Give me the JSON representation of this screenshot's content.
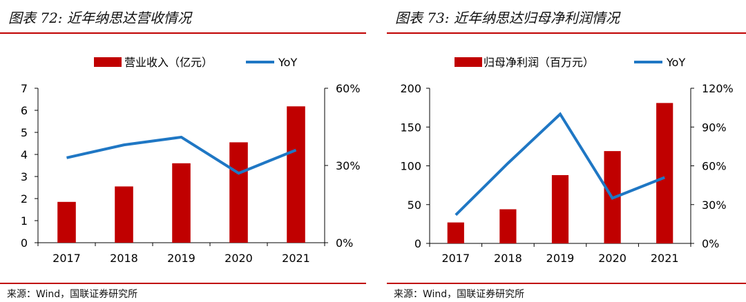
{
  "colors": {
    "bar": "#c00000",
    "line": "#1f77c4",
    "rule": "#c00000"
  },
  "chart_data": [
    {
      "type": "bar",
      "title": "图表 72:  近年纳思达营收情况",
      "source": "来源：Wind，国联证券研究所",
      "categories": [
        "2017",
        "2018",
        "2019",
        "2020",
        "2021"
      ],
      "series": [
        {
          "name": "营业收入（亿元）",
          "type": "bar",
          "axis": "left",
          "values": [
            1.85,
            2.55,
            3.6,
            4.55,
            6.18
          ]
        },
        {
          "name": "YoY",
          "type": "line",
          "axis": "right",
          "values": [
            33,
            38,
            41,
            27,
            36
          ]
        }
      ],
      "ylim": [
        0,
        7
      ],
      "yticks": [
        "0",
        "1",
        "2",
        "3",
        "4",
        "5",
        "6",
        "7"
      ],
      "y2lim": [
        0,
        60
      ],
      "y2ticks": [
        "0%",
        "30%",
        "60%"
      ],
      "legend": "top"
    },
    {
      "type": "bar",
      "title": "图表 73:  近年纳思达归母净利润情况",
      "source": "来源：Wind，国联证券研究所",
      "categories": [
        "2017",
        "2018",
        "2019",
        "2020",
        "2021"
      ],
      "series": [
        {
          "name": "归母净利润（百万元）",
          "type": "bar",
          "axis": "left",
          "values": [
            27,
            44,
            88,
            119,
            181
          ]
        },
        {
          "name": "YoY",
          "type": "line",
          "axis": "right",
          "values": [
            22,
            62,
            100,
            35,
            51
          ]
        }
      ],
      "ylim": [
        0,
        200
      ],
      "yticks": [
        "0",
        "50",
        "100",
        "150",
        "200"
      ],
      "y2lim": [
        0,
        120
      ],
      "y2ticks": [
        "0%",
        "30%",
        "60%",
        "90%",
        "120%"
      ],
      "legend": "top"
    }
  ]
}
